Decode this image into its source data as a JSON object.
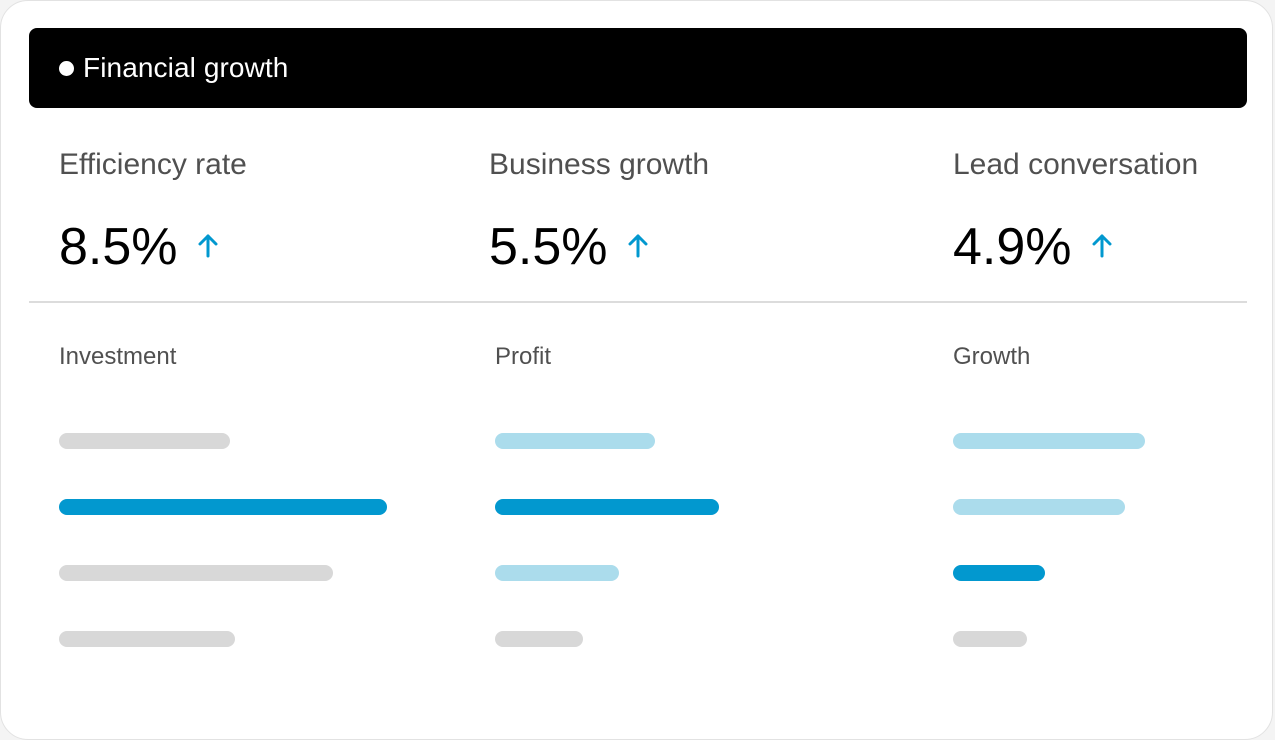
{
  "header": {
    "title": "Financial growth"
  },
  "metrics": [
    {
      "label": "Efficiency rate",
      "value": "8.5%",
      "trend": "up"
    },
    {
      "label": "Business growth",
      "value": "5.5%",
      "trend": "up"
    },
    {
      "label": "Lead conversation",
      "value": "4.9%",
      "trend": "up"
    }
  ],
  "colors": {
    "accent": "#0298cf",
    "light_accent": "#abdcec",
    "neutral": "#d8d8d8",
    "header_bg": "#000000"
  },
  "columns": [
    {
      "label": "Investment",
      "bars": [
        {
          "value": 0.52,
          "tone": "neutral"
        },
        {
          "value": 1.0,
          "tone": "accent"
        },
        {
          "value": 0.835,
          "tone": "neutral"
        },
        {
          "value": 0.537,
          "tone": "neutral"
        }
      ]
    },
    {
      "label": "Profit",
      "bars": [
        {
          "value": 0.488,
          "tone": "light_accent"
        },
        {
          "value": 0.683,
          "tone": "accent"
        },
        {
          "value": 0.378,
          "tone": "light_accent"
        },
        {
          "value": 0.268,
          "tone": "neutral"
        }
      ]
    },
    {
      "label": "Growth",
      "bars": [
        {
          "value": 0.585,
          "tone": "light_accent"
        },
        {
          "value": 0.524,
          "tone": "light_accent"
        },
        {
          "value": 0.28,
          "tone": "accent"
        },
        {
          "value": 0.226,
          "tone": "neutral"
        }
      ]
    }
  ]
}
